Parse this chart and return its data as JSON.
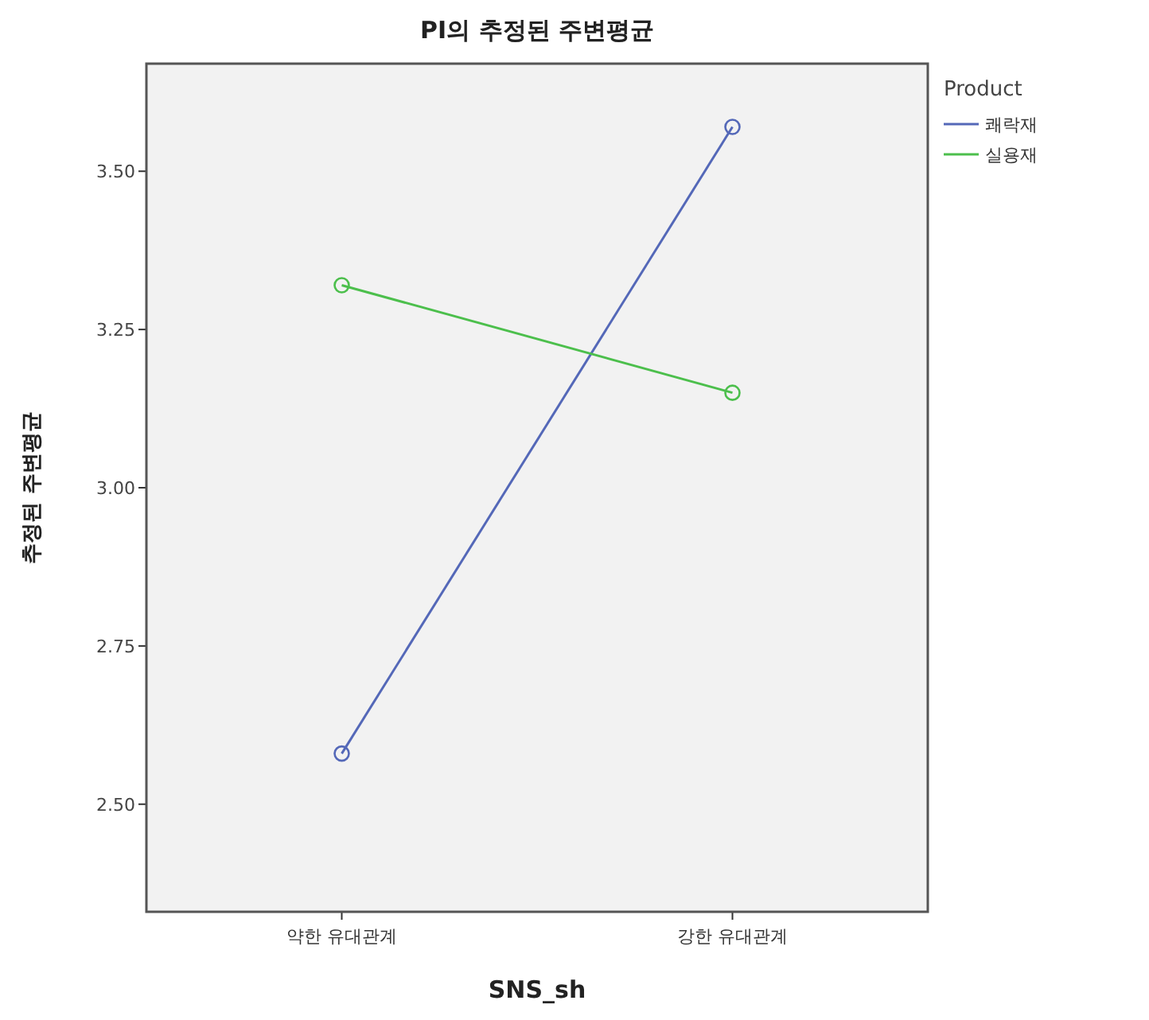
{
  "chart_data": {
    "type": "line",
    "title": "PI의 추정된 주변평균",
    "xlabel": "SNS_sh",
    "ylabel": "추정된 주변평균",
    "legend_title": "Product",
    "categories": [
      "약한 유대관계",
      "강한 유대관계"
    ],
    "series": [
      {
        "name": "쾌락재",
        "color": "#5468b8",
        "values": [
          2.58,
          3.57
        ]
      },
      {
        "name": "실용재",
        "color": "#4cbf4c",
        "values": [
          3.32,
          3.15
        ]
      }
    ],
    "ylim": [
      2.33,
      3.67
    ],
    "yticks": [
      {
        "value": 2.5,
        "label": "2.50"
      },
      {
        "value": 2.75,
        "label": "2.75"
      },
      {
        "value": 3.0,
        "label": "3.00"
      },
      {
        "value": 3.25,
        "label": "3.25"
      },
      {
        "value": 3.5,
        "label": "3.50"
      }
    ],
    "marker": "circle",
    "line_style": "solid",
    "grid": false,
    "legend": "top right"
  }
}
